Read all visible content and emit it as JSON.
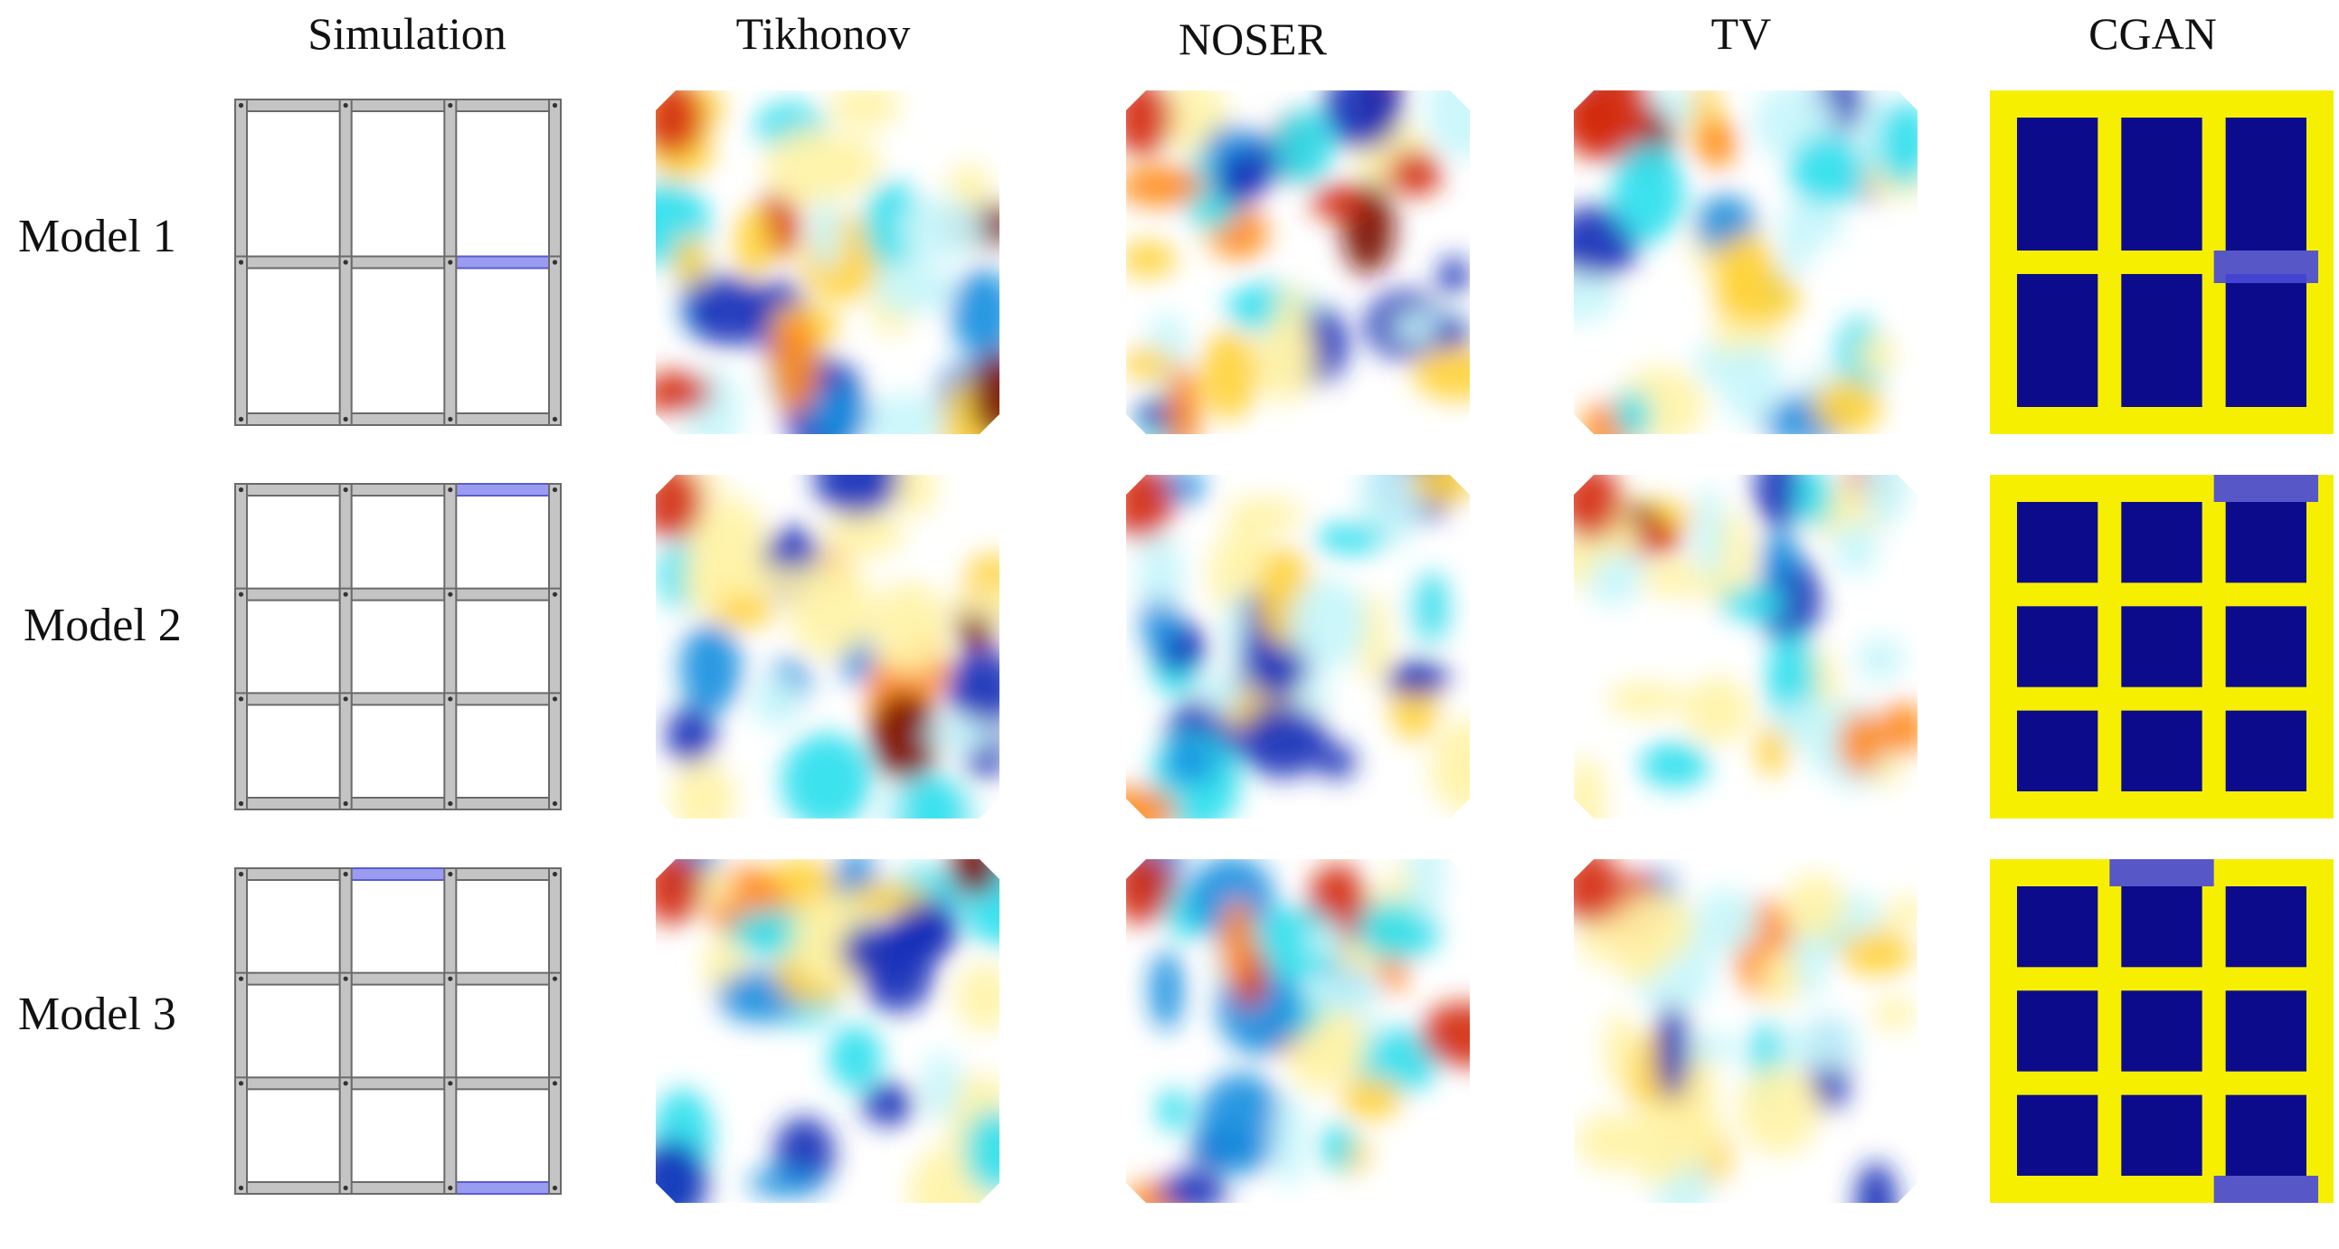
{
  "columns": [
    "Simulation",
    "Tikhonov",
    "NOSER",
    "TV",
    "CGAN"
  ],
  "rows": [
    {
      "label": "Model 1",
      "grid_cols": 3,
      "grid_rows": 2,
      "damaged_walls": [
        {
          "orientation": "h",
          "line": 1,
          "index": 2
        }
      ]
    },
    {
      "label": "Model 2",
      "grid_cols": 3,
      "grid_rows": 3,
      "damaged_walls": [
        {
          "orientation": "h",
          "line": 0,
          "index": 2
        }
      ]
    },
    {
      "label": "Model 3",
      "grid_cols": 3,
      "grid_rows": 3,
      "damaged_walls": [
        {
          "orientation": "h",
          "line": 0,
          "index": 1
        },
        {
          "orientation": "h",
          "line": 3,
          "index": 2
        }
      ]
    }
  ],
  "colors": {
    "wall": "#c4c4c4",
    "wall_stroke": "#6a6a6a",
    "damage": "#9a9cf0",
    "cgan_background": "#f7ef00",
    "cgan_cell": "#0b0b8c",
    "cgan_damage": "#4a4ad8",
    "map_positive": [
      "#fff3a8",
      "#ffd23a",
      "#ff8a1a",
      "#d42a10",
      "#7a0a00"
    ],
    "map_negative": [
      "#c8f6fb",
      "#2ee0ee",
      "#1a8fe0",
      "#1830b8"
    ]
  }
}
